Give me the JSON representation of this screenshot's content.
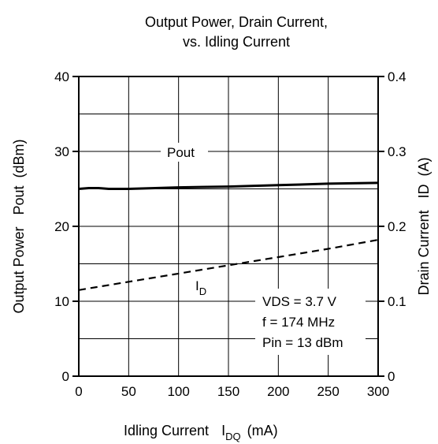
{
  "chart_data": {
    "type": "line",
    "title_line1": "Output Power, Drain Current,",
    "title_line2": "vs. Idling Current",
    "xlabel": "Idling Current",
    "xlabel_symbol": "I",
    "xlabel_symbol_sub": "DQ",
    "xlabel_unit": "(mA)",
    "ylabel_left": "Output Power   Pout  (dBm)",
    "ylabel_right": "Drain Current   ID  (A)",
    "xlim": [
      0,
      300
    ],
    "ylim_left": [
      0,
      40
    ],
    "ylim_right": [
      0,
      0.4
    ],
    "x_ticks": [
      0,
      50,
      100,
      150,
      200,
      250,
      300
    ],
    "y_left_ticks": [
      0,
      10,
      20,
      30,
      40
    ],
    "y_right_ticks": [
      "0",
      "0.1",
      "0.2",
      "0.3",
      "0.4"
    ],
    "grid": true,
    "series": [
      {
        "name": "Pout",
        "axis": "left",
        "style": "solid",
        "color": "#000000",
        "x": [
          0,
          10,
          20,
          30,
          50,
          100,
          150,
          200,
          250,
          300
        ],
        "y": [
          25.0,
          25.1,
          25.1,
          25.0,
          25.0,
          25.2,
          25.3,
          25.5,
          25.7,
          25.8
        ]
      },
      {
        "name": "I",
        "name_sub": "D",
        "axis": "right",
        "style": "dashed",
        "color": "#000000",
        "x": [
          0,
          50,
          100,
          150,
          200,
          250,
          300
        ],
        "y": [
          0.115,
          0.126,
          0.137,
          0.148,
          0.159,
          0.17,
          0.182
        ]
      }
    ],
    "annotation_lines": [
      "VDS = 3.7 V",
      "f = 174 MHz",
      "Pin = 13 dBm"
    ]
  }
}
